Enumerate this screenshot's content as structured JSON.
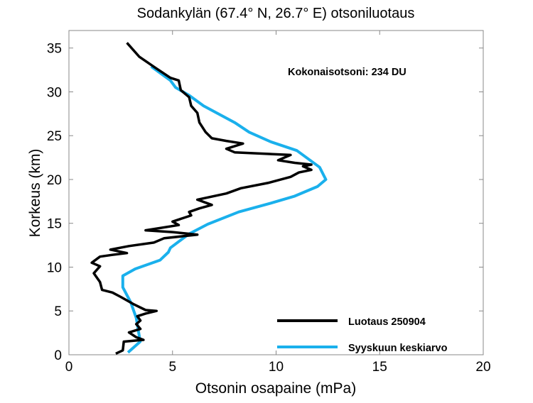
{
  "chart_data": {
    "type": "line",
    "title": "Sodankylän (67.4° N, 26.7° E)  otsoniluotaus",
    "xlabel": "Otsonin osapaine (mPa)",
    "ylabel": "Korkeus (km)",
    "xlim": [
      0,
      20
    ],
    "ylim": [
      0,
      37
    ],
    "xticks": [
      0,
      5,
      10,
      15,
      20
    ],
    "yticks": [
      0,
      5,
      10,
      15,
      20,
      25,
      30,
      35
    ],
    "grid": false,
    "legend_position": "bottom-right",
    "annotation": "Kokonaisotsoni: 234 DU",
    "series": [
      {
        "name": "Luotaus 250904",
        "color": "#000000",
        "points": [
          [
            2.26,
            0.13
          ],
          [
            2.6,
            0.5
          ],
          [
            2.65,
            1.5
          ],
          [
            3.6,
            1.7
          ],
          [
            3.25,
            2.0
          ],
          [
            2.9,
            2.55
          ],
          [
            3.45,
            2.95
          ],
          [
            3.25,
            3.5
          ],
          [
            3.45,
            3.9
          ],
          [
            3.3,
            4.4
          ],
          [
            3.7,
            4.7
          ],
          [
            4.23,
            5.0
          ],
          [
            3.7,
            5.1
          ],
          [
            3.1,
            5.8
          ],
          [
            2.5,
            6.6
          ],
          [
            2.1,
            7.1
          ],
          [
            1.6,
            7.4
          ],
          [
            1.5,
            8.3
          ],
          [
            1.2,
            9.3
          ],
          [
            1.5,
            10.1
          ],
          [
            1.1,
            10.5
          ],
          [
            1.5,
            11.2
          ],
          [
            2.1,
            11.4
          ],
          [
            2.8,
            11.6
          ],
          [
            2.0,
            12.0
          ],
          [
            2.9,
            12.4
          ],
          [
            4.1,
            12.8
          ],
          [
            4.6,
            13.3
          ],
          [
            6.2,
            13.7
          ],
          [
            5.0,
            14.0
          ],
          [
            3.7,
            14.2
          ],
          [
            5.3,
            14.8
          ],
          [
            5.0,
            15.2
          ],
          [
            5.9,
            15.9
          ],
          [
            5.8,
            16.3
          ],
          [
            6.3,
            16.7
          ],
          [
            6.9,
            17.1
          ],
          [
            6.2,
            17.7
          ],
          [
            7.0,
            18.1
          ],
          [
            7.6,
            18.4
          ],
          [
            8.3,
            19.0
          ],
          [
            9.6,
            19.6
          ],
          [
            10.7,
            20.3
          ],
          [
            11.1,
            20.8
          ],
          [
            11.7,
            21.1
          ],
          [
            11.3,
            21.5
          ],
          [
            11.7,
            21.7
          ],
          [
            10.9,
            21.9
          ],
          [
            10.1,
            22.2
          ],
          [
            10.7,
            22.8
          ],
          [
            8.0,
            23.1
          ],
          [
            7.6,
            23.5
          ],
          [
            8.4,
            24.1
          ],
          [
            7.6,
            24.4
          ],
          [
            6.9,
            24.7
          ],
          [
            6.6,
            25.4
          ],
          [
            6.3,
            26.5
          ],
          [
            6.2,
            27.6
          ],
          [
            5.9,
            28.4
          ],
          [
            5.8,
            29.4
          ],
          [
            5.4,
            30.2
          ],
          [
            5.3,
            31.3
          ],
          [
            4.9,
            31.6
          ],
          [
            4.2,
            32.7
          ],
          [
            3.4,
            34.0
          ],
          [
            2.8,
            35.6
          ]
        ]
      },
      {
        "name": "Syyskuun keskiarvo",
        "color": "#1ab0ec",
        "points": [
          [
            2.85,
            0.27
          ],
          [
            3.44,
            1.5
          ],
          [
            3.25,
            4.2
          ],
          [
            2.98,
            6.0
          ],
          [
            2.6,
            7.7
          ],
          [
            2.6,
            9.0
          ],
          [
            3.2,
            9.8
          ],
          [
            4.4,
            10.8
          ],
          [
            4.8,
            11.7
          ],
          [
            4.9,
            12.2
          ],
          [
            5.8,
            13.8
          ],
          [
            6.7,
            14.9
          ],
          [
            8.2,
            16.3
          ],
          [
            9.75,
            17.3
          ],
          [
            10.9,
            18.1
          ],
          [
            12.0,
            19.2
          ],
          [
            12.4,
            20.0
          ],
          [
            12.1,
            21.4
          ],
          [
            11.0,
            23.3
          ],
          [
            9.75,
            24.3
          ],
          [
            8.7,
            25.4
          ],
          [
            8.0,
            26.5
          ],
          [
            6.5,
            28.4
          ],
          [
            5.8,
            29.6
          ],
          [
            5.15,
            30.5
          ],
          [
            4.9,
            31.3
          ],
          [
            3.97,
            32.9
          ]
        ]
      }
    ]
  }
}
